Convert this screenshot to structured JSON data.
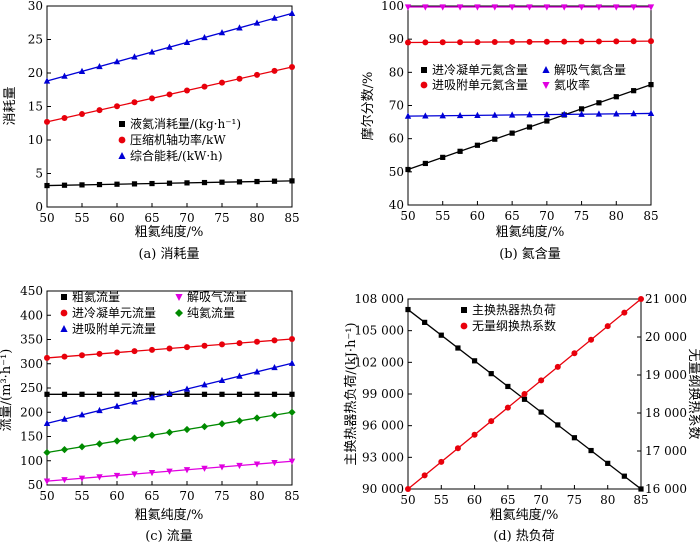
{
  "chart_data": [
    {
      "type": "line",
      "caption": "(a) 消耗量",
      "xlabel": "粗氦纯度/%",
      "ylabel": "消耗量",
      "xlim": [
        50,
        85
      ],
      "ylim": [
        0,
        30
      ],
      "xticks": [
        50,
        55,
        60,
        65,
        70,
        75,
        80,
        85
      ],
      "yticks": [
        0,
        5,
        10,
        15,
        20,
        25,
        30
      ],
      "grid": false,
      "legend_position": "center-left",
      "series": [
        {
          "name": "液氦消耗量/(kg·h⁻¹)",
          "color": "#000000",
          "marker": "square",
          "x": [
            50,
            85
          ],
          "y": [
            3.2,
            3.9
          ]
        },
        {
          "name": "压缩机轴功率/kW",
          "color": "#e8000b",
          "marker": "circle",
          "x": [
            50,
            85
          ],
          "y": [
            12.7,
            20.9
          ]
        },
        {
          "name": "综合能耗/(kW·h)",
          "color": "#0000d6",
          "marker": "triangle-up",
          "x": [
            50,
            85
          ],
          "y": [
            18.8,
            28.9
          ]
        }
      ]
    },
    {
      "type": "line",
      "caption": "(b) 氦含量",
      "xlabel": "粗氦纯度/%",
      "ylabel": "摩尔分数/%",
      "xlim": [
        50,
        85
      ],
      "ylim": [
        40,
        100
      ],
      "xticks": [
        50,
        55,
        60,
        65,
        70,
        75,
        80,
        85
      ],
      "yticks": [
        40,
        50,
        60,
        70,
        80,
        90,
        100
      ],
      "grid": false,
      "legend_position": "top-center",
      "series": [
        {
          "name": "进冷凝单元氦含量",
          "color": "#000000",
          "marker": "square",
          "x": [
            50,
            85
          ],
          "y": [
            50.7,
            76.3
          ]
        },
        {
          "name": "进吸附单元氦含量",
          "color": "#e8000b",
          "marker": "circle",
          "x": [
            50,
            85
          ],
          "y": [
            89.0,
            89.4
          ]
        },
        {
          "name": "解吸气氦含量",
          "color": "#0000d6",
          "marker": "triangle-up",
          "x": [
            50,
            85
          ],
          "y": [
            66.8,
            67.6
          ]
        },
        {
          "name": "氦收率",
          "color": "#e000e0",
          "marker": "triangle-down",
          "x": [
            50,
            85
          ],
          "y": [
            99.7,
            99.7
          ]
        }
      ]
    },
    {
      "type": "line",
      "caption": "(c) 流量",
      "xlabel": "粗氦纯度/%",
      "ylabel": "流量/(m³·h⁻¹)",
      "xlim": [
        50,
        85
      ],
      "ylim": [
        50,
        450
      ],
      "xticks": [
        50,
        55,
        60,
        65,
        70,
        75,
        80,
        85
      ],
      "yticks": [
        50,
        100,
        150,
        200,
        250,
        300,
        350,
        400,
        450
      ],
      "grid": false,
      "legend_position": "top",
      "series": [
        {
          "name": "粗氦流量",
          "color": "#000000",
          "marker": "square",
          "x": [
            50,
            85
          ],
          "y": [
            237,
            237
          ]
        },
        {
          "name": "进冷凝单元流量",
          "color": "#e8000b",
          "marker": "circle",
          "x": [
            50,
            85
          ],
          "y": [
            312,
            351
          ]
        },
        {
          "name": "进吸附单元流量",
          "color": "#0000d6",
          "marker": "triangle-up",
          "x": [
            50,
            85
          ],
          "y": [
            177,
            301
          ]
        },
        {
          "name": "解吸气流量",
          "color": "#e000e0",
          "marker": "triangle-down",
          "x": [
            50,
            85
          ],
          "y": [
            58,
            99
          ]
        },
        {
          "name": "纯氦流量",
          "color": "#008a00",
          "marker": "diamond",
          "x": [
            50,
            85
          ],
          "y": [
            117,
            200
          ]
        }
      ]
    },
    {
      "type": "line",
      "caption": "(d) 热负荷",
      "xlabel": "粗氦纯度/%",
      "ylabel": "主换热器热负荷/(kJ·h⁻¹)",
      "y2label": "无量纲换热系数",
      "xlim": [
        50,
        85
      ],
      "ylim": [
        90000,
        108000
      ],
      "y2lim": [
        16000,
        21000
      ],
      "xticks": [
        50,
        55,
        60,
        65,
        70,
        75,
        80,
        85
      ],
      "yticks": [
        90000,
        93000,
        96000,
        99000,
        102000,
        105000,
        108000
      ],
      "ytick_labels": [
        "90 000",
        "93 000",
        "96 000",
        "99 000",
        "102 000",
        "105 000",
        "108 000"
      ],
      "y2ticks": [
        16000,
        17000,
        18000,
        19000,
        20000,
        21000
      ],
      "y2tick_labels": [
        "16 000",
        "17 000",
        "18 000",
        "19 000",
        "20 000",
        "21 000"
      ],
      "grid": false,
      "legend_position": "top-right",
      "series": [
        {
          "name": "主换热器热负荷",
          "color": "#000000",
          "marker": "square",
          "axis": "left",
          "x": [
            50,
            85
          ],
          "y": [
            107000,
            90000
          ]
        },
        {
          "name": "无量纲换热系数",
          "color": "#e8000b",
          "marker": "circle",
          "axis": "right",
          "x": [
            50,
            85
          ],
          "y": [
            16000,
            21000
          ]
        }
      ]
    }
  ]
}
